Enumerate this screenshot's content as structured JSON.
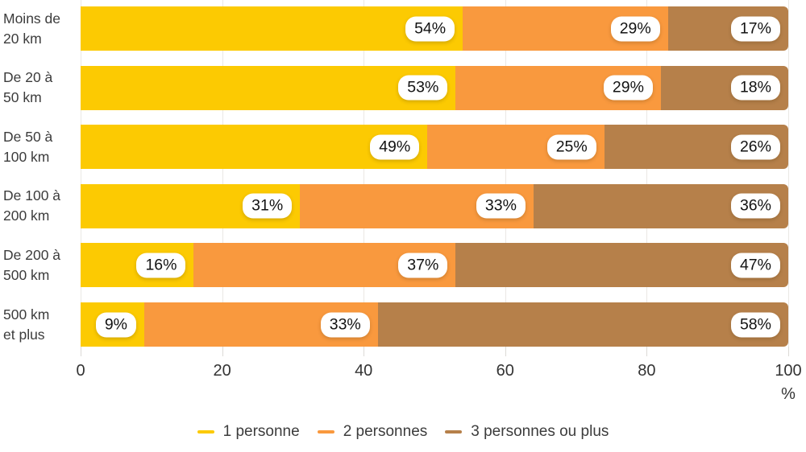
{
  "chart_data": {
    "type": "bar",
    "orientation": "horizontal-stacked",
    "title": "",
    "categories": [
      "Moins de 20 km",
      "De 20 à 50 km",
      "De 50 à 100 km",
      "De 100 à 200 km",
      "De 200 à 500 km",
      "500 km et plus"
    ],
    "category_lines": [
      [
        "Moins de",
        "20 km"
      ],
      [
        "De 20 à",
        "50 km"
      ],
      [
        "De 50 à",
        "100 km"
      ],
      [
        "De 100 à",
        "200 km"
      ],
      [
        "De 200 à",
        "500 km"
      ],
      [
        "500 km",
        "et plus"
      ]
    ],
    "series": [
      {
        "name": "1 personne",
        "color": "#FCCA02",
        "values": [
          54,
          53,
          49,
          31,
          16,
          9
        ]
      },
      {
        "name": "2 personnes",
        "color": "#F9993E",
        "values": [
          29,
          29,
          25,
          33,
          37,
          33
        ]
      },
      {
        "name": "3 personnes ou plus",
        "color": "#B6804A",
        "values": [
          17,
          18,
          26,
          36,
          47,
          58
        ]
      }
    ],
    "value_label_format": "{v}%",
    "x_ticks": [
      0,
      20,
      40,
      60,
      80,
      100
    ],
    "xlim": [
      0,
      100
    ],
    "axis_unit": "%",
    "grid": true,
    "legend_position": "bottom"
  },
  "style": {
    "background": "#ffffff",
    "grid_color": "#eae8e4",
    "tick_color": "#dcdad6",
    "label_color": "#3c3c3c",
    "pill_bg": "#ffffff",
    "pill_text": "#131313"
  }
}
